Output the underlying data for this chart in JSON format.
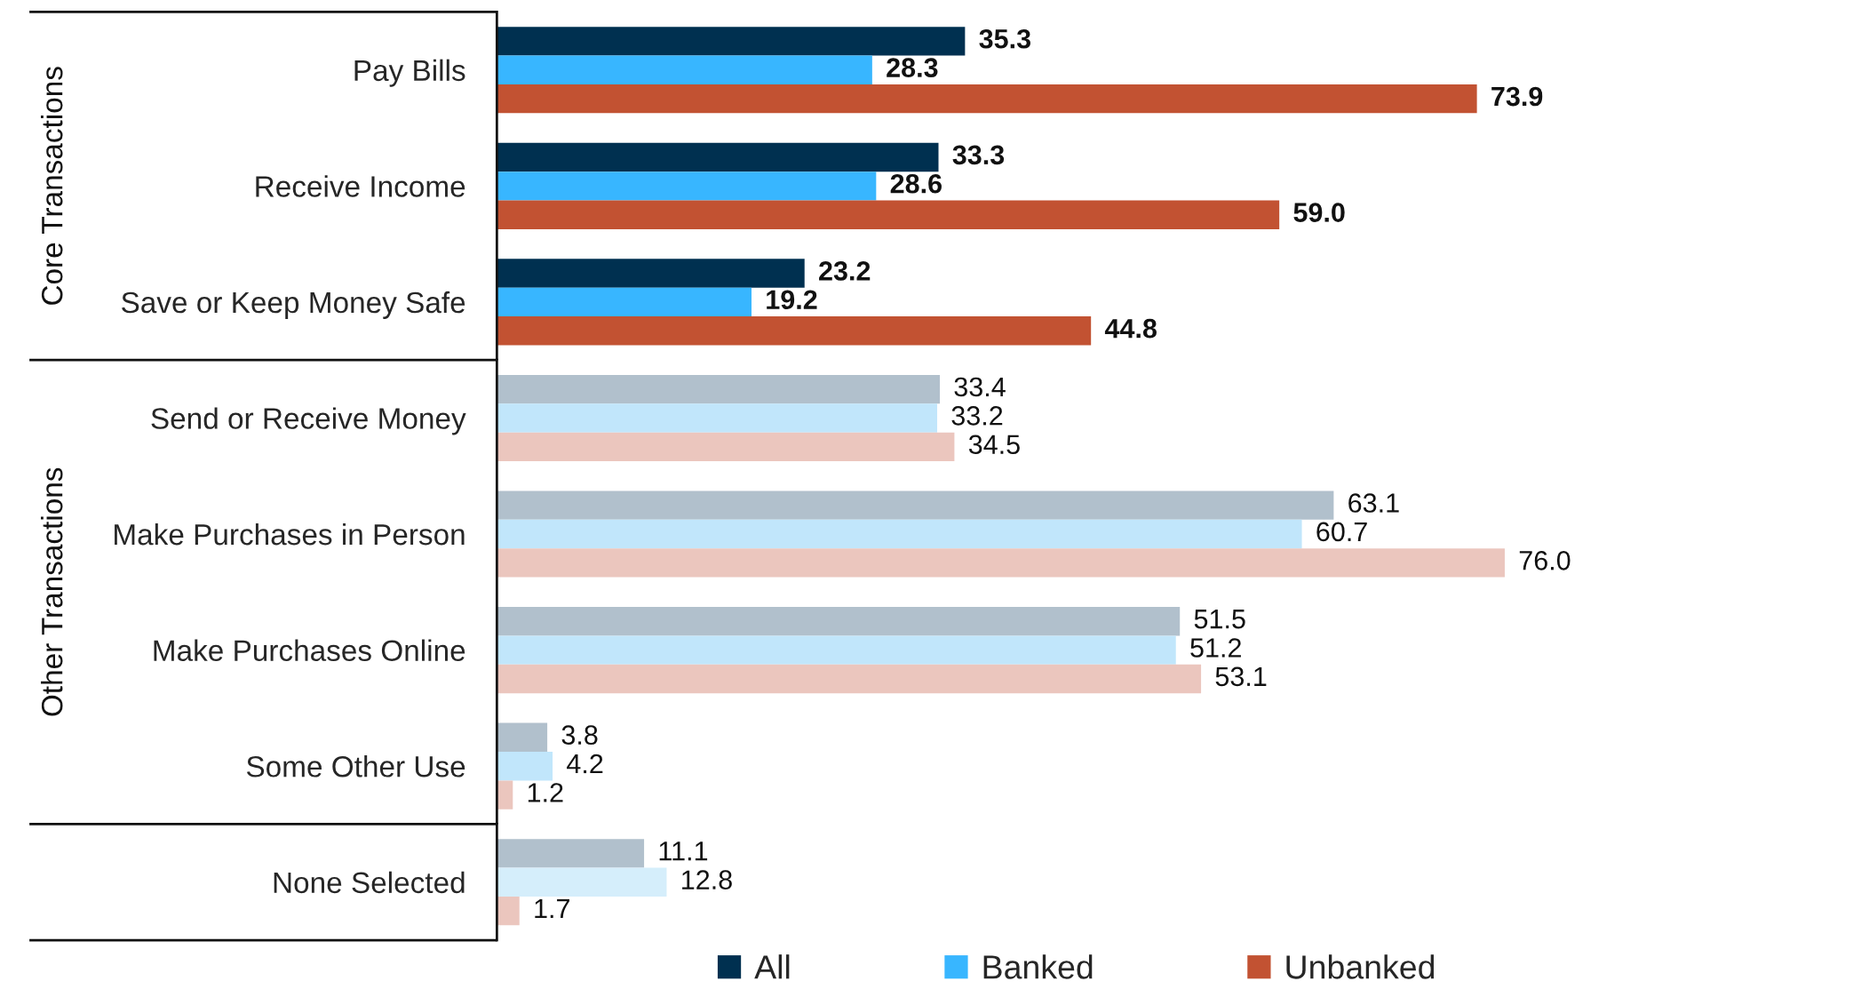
{
  "chart_data": [
    {
      "type": "bar",
      "orientation": "horizontal",
      "ylabel": "Core Transactions",
      "tick_labels": "y",
      "legend": "bottom",
      "categories": [
        "Pay Bills",
        "Receive Income",
        "Save or Keep Money Safe"
      ],
      "series": [
        {
          "name": "All",
          "color": "#003050",
          "values": [
            35.3,
            33.3,
            23.2
          ],
          "value_labels": [
            "35.3",
            "33.3",
            "23.2"
          ]
        },
        {
          "name": "Banked",
          "color": "#38b6ff",
          "values": [
            28.3,
            28.6,
            19.2
          ],
          "value_labels": [
            "28.3",
            "28.6",
            "19.2"
          ]
        },
        {
          "name": "Unbanked",
          "color": "#c25232",
          "values": [
            73.9,
            59.0,
            44.8
          ],
          "value_labels": [
            "73.9",
            "59.0",
            "44.8"
          ]
        }
      ]
    },
    {
      "type": "bar",
      "orientation": "horizontal",
      "ylabel": "Other Transactions",
      "tick_labels": "y",
      "categories": [
        "Send or Receive Money",
        "Make Purchases in Person",
        "Make Purchases Online",
        "Some Other Use"
      ],
      "series": [
        {
          "color": "#b1c0cc",
          "values": [
            33.4,
            63.1,
            51.5,
            3.8
          ],
          "value_labels": [
            "33.4",
            "63.1",
            "51.5",
            "3.8"
          ]
        },
        {
          "color": "#c1e6fb",
          "values": [
            33.2,
            60.7,
            51.2,
            4.2
          ],
          "value_labels": [
            "33.2",
            "60.7",
            "51.2",
            "4.2"
          ]
        },
        {
          "color": "#ebc6be",
          "values": [
            34.5,
            76.0,
            53.1,
            1.2
          ],
          "value_labels": [
            "34.5",
            "76.0",
            "53.1",
            "1.2"
          ]
        }
      ]
    },
    {
      "type": "bar",
      "orientation": "horizontal",
      "tick_labels": "y",
      "categories": [
        "None Selected"
      ],
      "series": [
        {
          "color": "#b1c0cc",
          "values": [
            11.1
          ],
          "value_labels": [
            "11.1"
          ]
        },
        {
          "color": "#d5eefb",
          "values": [
            12.8
          ],
          "value_labels": [
            "12.8"
          ]
        },
        {
          "color": "#ebc6be",
          "values": [
            1.7
          ],
          "value_labels": [
            "1.7"
          ]
        }
      ]
    }
  ]
}
